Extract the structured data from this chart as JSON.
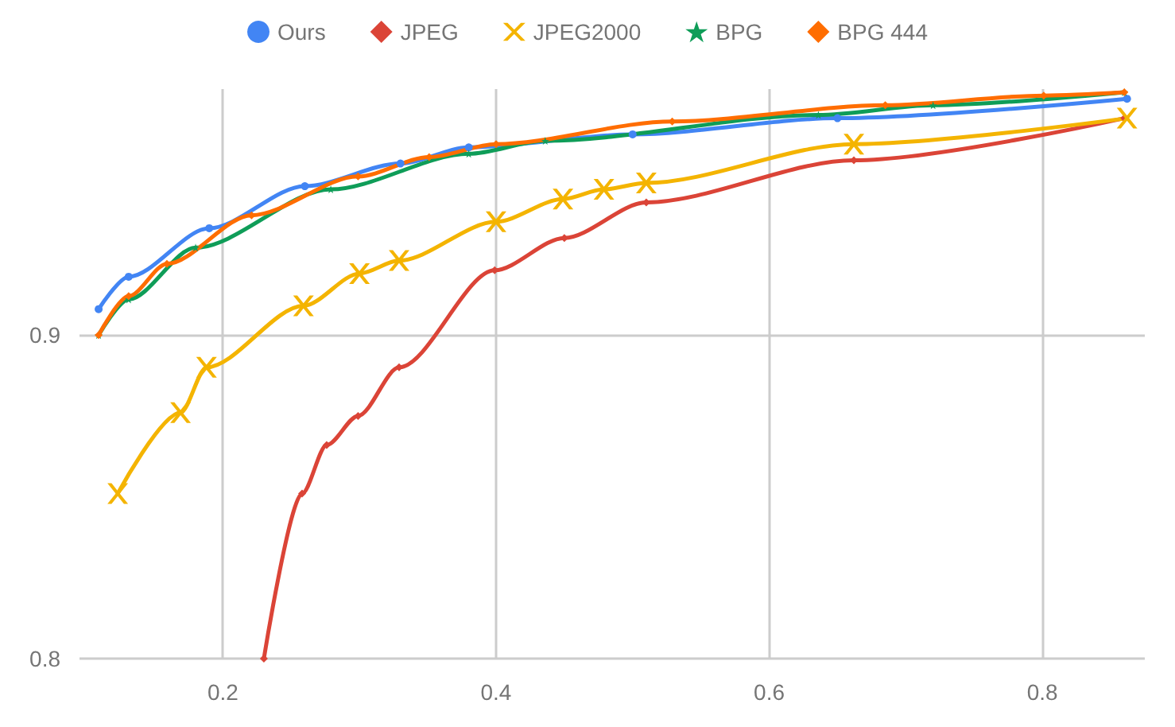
{
  "chart_data": {
    "type": "line",
    "xlim": [
      0.095,
      0.875
    ],
    "xticks": [
      0.2,
      0.4,
      0.6,
      0.8
    ],
    "ylim": [
      0.8,
      0.976
    ],
    "yticks": [
      0.8,
      0.9
    ],
    "grid": true,
    "legend": "top",
    "series": [
      {
        "name": "Ours",
        "color": "#4285f4",
        "marker": "circle",
        "x": [
          0.109,
          0.131,
          0.19,
          0.26,
          0.33,
          0.38,
          0.5,
          0.65,
          0.862
        ],
        "values": [
          0.908,
          0.918,
          0.933,
          0.946,
          0.953,
          0.958,
          0.962,
          0.967,
          0.973
        ]
      },
      {
        "name": "JPEG",
        "color": "#db4437",
        "marker": "diamond",
        "x": [
          0.23,
          0.258,
          0.276,
          0.299,
          0.329,
          0.399,
          0.45,
          0.51,
          0.662,
          0.86
        ],
        "values": [
          0.8,
          0.851,
          0.866,
          0.875,
          0.89,
          0.92,
          0.93,
          0.941,
          0.954,
          0.967
        ]
      },
      {
        "name": "JPEG2000",
        "color": "#f4b400",
        "marker": "cross",
        "x": [
          0.123,
          0.169,
          0.188,
          0.259,
          0.3,
          0.329,
          0.4,
          0.449,
          0.479,
          0.51,
          0.662,
          0.862
        ],
        "values": [
          0.851,
          0.876,
          0.89,
          0.909,
          0.919,
          0.923,
          0.935,
          0.942,
          0.945,
          0.947,
          0.959,
          0.967
        ]
      },
      {
        "name": "BPG",
        "color": "#0f9d58",
        "marker": "star",
        "x": [
          0.109,
          0.131,
          0.18,
          0.279,
          0.38,
          0.436,
          0.636,
          0.72,
          0.86
        ],
        "values": [
          0.9,
          0.911,
          0.927,
          0.945,
          0.956,
          0.96,
          0.968,
          0.971,
          0.975
        ]
      },
      {
        "name": "BPG 444",
        "color": "#ff6d00",
        "marker": "diamond",
        "x": [
          0.109,
          0.131,
          0.159,
          0.221,
          0.299,
          0.351,
          0.4,
          0.529,
          0.685,
          0.801,
          0.86
        ],
        "values": [
          0.9,
          0.912,
          0.922,
          0.937,
          0.949,
          0.955,
          0.959,
          0.966,
          0.971,
          0.974,
          0.975
        ]
      }
    ]
  }
}
